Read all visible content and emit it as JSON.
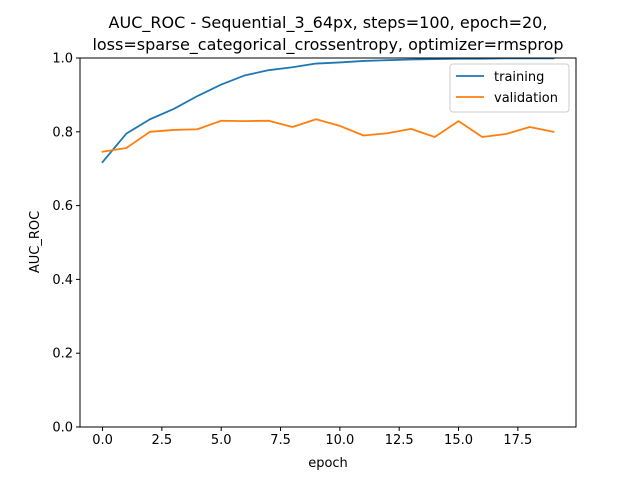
{
  "chart_data": {
    "type": "line",
    "title_lines": [
      "AUC_ROC - Sequential_3_64px, steps=100, epoch=20,",
      "loss=sparse_categorical_crossentropy, optimizer=rmsprop"
    ],
    "xlabel": "epoch",
    "ylabel": "AUC_ROC",
    "xlim": [
      -0.95,
      19.95
    ],
    "ylim": [
      0.0,
      1.0
    ],
    "x_ticks": [
      0.0,
      2.5,
      5.0,
      7.5,
      10.0,
      12.5,
      15.0,
      17.5
    ],
    "x_tick_labels": [
      "0.0",
      "2.5",
      "5.0",
      "7.5",
      "10.0",
      "12.5",
      "15.0",
      "17.5"
    ],
    "y_ticks": [
      0.0,
      0.2,
      0.4,
      0.6,
      0.8,
      1.0
    ],
    "y_tick_labels": [
      "0.0",
      "0.2",
      "0.4",
      "0.6",
      "0.8",
      "1.0"
    ],
    "grid": false,
    "legend_position": "top-right",
    "x": [
      0,
      1,
      2,
      3,
      4,
      5,
      6,
      7,
      8,
      9,
      10,
      11,
      12,
      13,
      14,
      15,
      16,
      17,
      18,
      19
    ],
    "series": [
      {
        "name": "training",
        "color": "#1f77b4",
        "values": [
          0.718,
          0.795,
          0.834,
          0.862,
          0.897,
          0.928,
          0.953,
          0.967,
          0.975,
          0.985,
          0.988,
          0.992,
          0.994,
          0.996,
          0.997,
          0.998,
          0.998,
          0.999,
          0.999,
          0.999
        ]
      },
      {
        "name": "validation",
        "color": "#ff7f0e",
        "values": [
          0.746,
          0.756,
          0.8,
          0.805,
          0.807,
          0.83,
          0.829,
          0.83,
          0.813,
          0.834,
          0.816,
          0.79,
          0.796,
          0.808,
          0.786,
          0.829,
          0.786,
          0.794,
          0.813,
          0.8
        ]
      }
    ]
  }
}
